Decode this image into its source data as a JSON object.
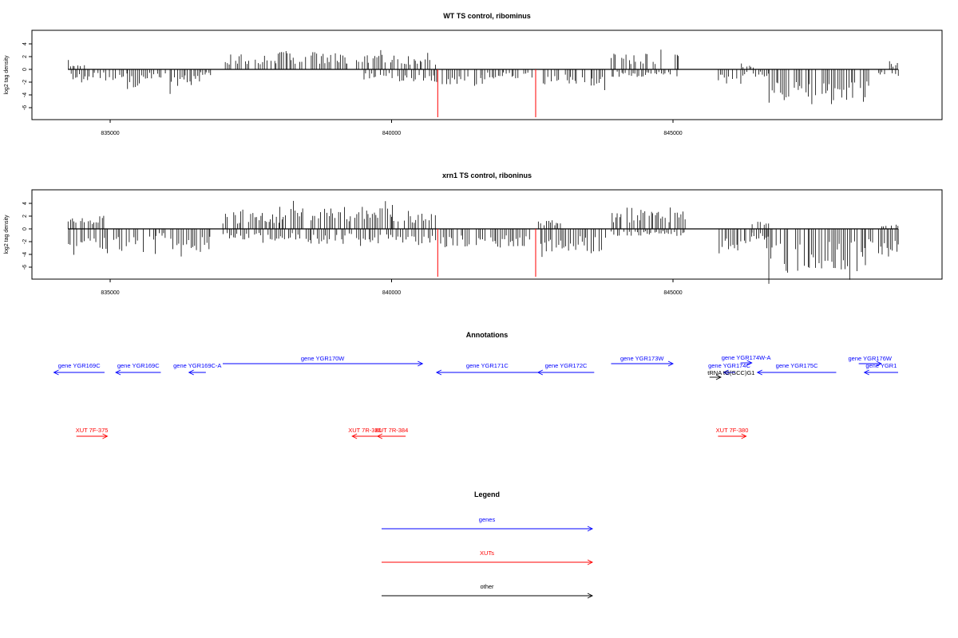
{
  "chart_data": [
    {
      "type": "bar",
      "title": "WT TS control, ribominus",
      "ylabel": "log2 tag density",
      "xlabel": "",
      "xlim": [
        834000,
        849000
      ],
      "ylim": [
        -8,
        6
      ],
      "yticks": [
        -8,
        -6,
        -4,
        -2,
        0,
        2,
        4
      ],
      "xticks": [
        835000,
        840000,
        845000
      ],
      "grid": false,
      "colors": {
        "bars": "#000000",
        "highlight": "#ff0000"
      },
      "highlights": [
        {
          "x": 840820,
          "value": -7.5
        },
        {
          "x": 842560,
          "value": -7.5
        }
      ],
      "regions": [
        {
          "x0": 834250,
          "x1": 834600,
          "value": 1.0,
          "sign": 1
        },
        {
          "x0": 834300,
          "x1": 834700,
          "value": -1.8,
          "sign": -1
        },
        {
          "x0": 834700,
          "x1": 835300,
          "value": -1.3,
          "sign": -1
        },
        {
          "x0": 835300,
          "x1": 835550,
          "value": -2.6,
          "sign": -1
        },
        {
          "x0": 835550,
          "x1": 836000,
          "value": -1.2,
          "sign": -1
        },
        {
          "x0": 836050,
          "x1": 836600,
          "value": -2.5,
          "sign": -1
        },
        {
          "x0": 836600,
          "x1": 836800,
          "value": -0.9,
          "sign": -1
        },
        {
          "x0": 837000,
          "x1": 838000,
          "value": 2.0,
          "sign": 1
        },
        {
          "x0": 838000,
          "x1": 839200,
          "value": 2.3,
          "sign": 1
        },
        {
          "x0": 839200,
          "x1": 840000,
          "value": 2.0,
          "sign": 1
        },
        {
          "x0": 839500,
          "x1": 840800,
          "value": -1.6,
          "sign": -1
        },
        {
          "x0": 840000,
          "x1": 840800,
          "value": 1.8,
          "sign": 1
        },
        {
          "x0": 840900,
          "x1": 841600,
          "value": -2.2,
          "sign": -1
        },
        {
          "x0": 841600,
          "x1": 842500,
          "value": -1.3,
          "sign": -1
        },
        {
          "x0": 842650,
          "x1": 843800,
          "value": -2.3,
          "sign": -1
        },
        {
          "x0": 843900,
          "x1": 845100,
          "value": 2.1,
          "sign": 1
        },
        {
          "x0": 843900,
          "x1": 845100,
          "value": -1.0,
          "sign": -1
        },
        {
          "x0": 845800,
          "x1": 846200,
          "value": -2.0,
          "sign": -1
        },
        {
          "x0": 846200,
          "x1": 846700,
          "value": -1.0,
          "sign": -1
        },
        {
          "x0": 846200,
          "x1": 846500,
          "value": 0.8,
          "sign": 1
        },
        {
          "x0": 846650,
          "x1": 848500,
          "value": -4.6,
          "sign": -1
        },
        {
          "x0": 848600,
          "x1": 849000,
          "value": -1.2,
          "sign": -1
        },
        {
          "x0": 848800,
          "x1": 849000,
          "value": 0.9,
          "sign": 1
        }
      ]
    },
    {
      "type": "bar",
      "title": "xrn1 TS control, riboninus",
      "ylabel": "log2 tag density",
      "xlabel": "",
      "xlim": [
        834000,
        849000
      ],
      "ylim": [
        -8,
        6
      ],
      "yticks": [
        -8,
        -6,
        -4,
        -2,
        0,
        2,
        4
      ],
      "xticks": [
        835000,
        840000,
        845000
      ],
      "grid": false,
      "colors": {
        "bars": "#000000",
        "highlight": "#ff0000"
      },
      "highlights": [
        {
          "x": 840820,
          "value": -7.5
        },
        {
          "x": 842560,
          "value": -7.5
        }
      ],
      "regions": [
        {
          "x0": 834250,
          "x1": 834900,
          "value": 1.8,
          "sign": 1
        },
        {
          "x0": 834250,
          "x1": 835800,
          "value": -3.4,
          "sign": -1
        },
        {
          "x0": 835800,
          "x1": 836000,
          "value": -1.5,
          "sign": -1
        },
        {
          "x0": 836000,
          "x1": 836800,
          "value": -3.3,
          "sign": -1
        },
        {
          "x0": 837000,
          "x1": 838000,
          "value": 2.3,
          "sign": 1
        },
        {
          "x0": 837000,
          "x1": 838500,
          "value": -1.4,
          "sign": -1
        },
        {
          "x0": 838000,
          "x1": 840000,
          "value": 3.0,
          "sign": 1
        },
        {
          "x0": 838500,
          "x1": 840800,
          "value": -2.0,
          "sign": -1
        },
        {
          "x0": 840000,
          "x1": 840800,
          "value": 2.5,
          "sign": 1
        },
        {
          "x0": 840800,
          "x1": 842500,
          "value": -2.5,
          "sign": -1
        },
        {
          "x0": 842600,
          "x1": 843800,
          "value": -3.3,
          "sign": -1
        },
        {
          "x0": 842600,
          "x1": 843000,
          "value": 1.2,
          "sign": 1
        },
        {
          "x0": 843900,
          "x1": 845200,
          "value": 2.8,
          "sign": 1
        },
        {
          "x0": 843900,
          "x1": 845200,
          "value": -1.0,
          "sign": -1
        },
        {
          "x0": 845800,
          "x1": 846400,
          "value": -3.0,
          "sign": -1
        },
        {
          "x0": 846400,
          "x1": 846700,
          "value": 1.6,
          "sign": 1
        },
        {
          "x0": 846400,
          "x1": 846700,
          "value": -1.4,
          "sign": -1
        },
        {
          "x0": 846650,
          "x1": 848400,
          "value": -5.6,
          "sign": -1
        },
        {
          "x0": 848400,
          "x1": 849000,
          "value": -3.4,
          "sign": -1
        },
        {
          "x0": 848700,
          "x1": 849000,
          "value": 0.8,
          "sign": 1
        }
      ]
    }
  ],
  "annotations": {
    "title": "Annotations",
    "genes_color": "#0000ff",
    "xuts_color": "#ff0000",
    "other_color": "#000000",
    "genes": [
      {
        "label": "gene YGR169C",
        "start": 834000,
        "end": 834900,
        "dir": "left",
        "row": 2
      },
      {
        "label": "gene YGR169C",
        "start": 835100,
        "end": 835900,
        "dir": "left",
        "row": 2
      },
      {
        "label": "gene YGR169C-A",
        "start": 836400,
        "end": 836700,
        "dir": "left",
        "row": 2
      },
      {
        "label": "gene YGR170W",
        "start": 837000,
        "end": 840550,
        "dir": "right",
        "row": 1
      },
      {
        "label": "gene YGR171C",
        "start": 840800,
        "end": 842600,
        "dir": "left",
        "row": 2
      },
      {
        "label": "gene YGR172C",
        "start": 842600,
        "end": 843600,
        "dir": "left",
        "row": 2
      },
      {
        "label": "gene YGR173W",
        "start": 843900,
        "end": 845000,
        "dir": "right",
        "row": 1
      },
      {
        "label": "gene YGR174C",
        "start": 845900,
        "end": 846100,
        "dir": "left",
        "row": 2
      },
      {
        "label": "gene YGR174W-A",
        "start": 846200,
        "end": 846400,
        "dir": "right",
        "row": 0
      },
      {
        "label": "gene YGR175C",
        "start": 846500,
        "end": 847900,
        "dir": "left",
        "row": 2
      },
      {
        "label": "gene YGR176W",
        "start": 848300,
        "end": 848700,
        "dir": "right",
        "row": 1
      },
      {
        "label": "gene YGR1",
        "start": 848400,
        "end": 849000,
        "dir": "left",
        "row": 2
      }
    ],
    "xuts": [
      {
        "label": "XUT 7F-375",
        "start": 834400,
        "end": 834950,
        "dir": "right"
      },
      {
        "label": "XUT 7R-380",
        "start": 839300,
        "end": 839750,
        "dir": "left"
      },
      {
        "label": "XUT 7R-384",
        "start": 839750,
        "end": 840250,
        "dir": "left"
      },
      {
        "label": "XUT 7F-380",
        "start": 845800,
        "end": 846300,
        "dir": "right"
      }
    ],
    "other": [
      {
        "label": "tRNA tG(GCC)G1",
        "start": 845650,
        "end": 845850,
        "dir": "right"
      }
    ]
  },
  "legend": {
    "title": "Legend",
    "items": [
      {
        "label": "genes",
        "color": "#0000ff"
      },
      {
        "label": "XUTs",
        "color": "#ff0000"
      },
      {
        "label": "other",
        "color": "#000000"
      }
    ]
  }
}
